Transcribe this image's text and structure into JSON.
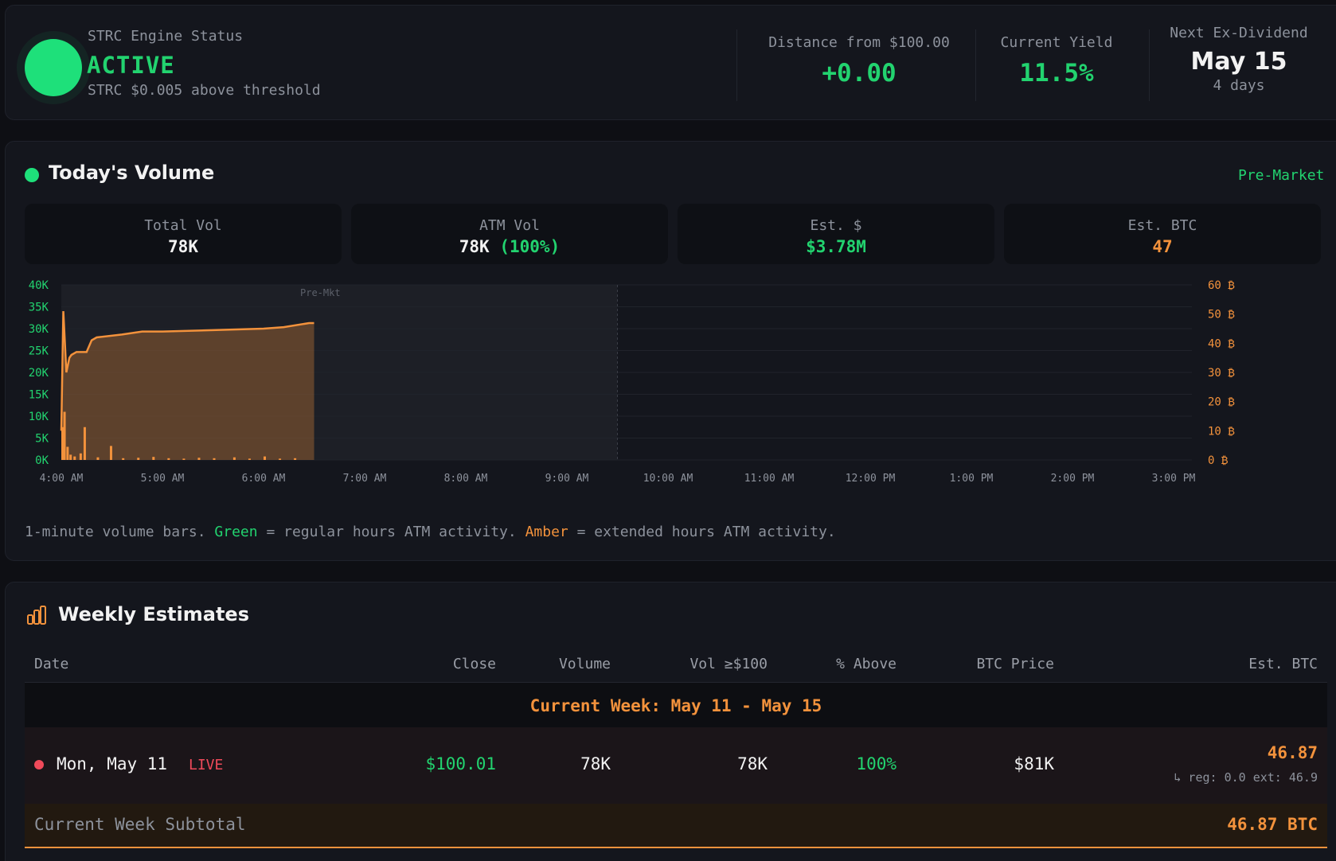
{
  "status": {
    "label": "STRC Engine Status",
    "state": "ACTIVE",
    "detail": "STRC $0.005 above threshold",
    "metrics": [
      {
        "label": "Distance from $100.00",
        "value": "+0.00"
      },
      {
        "label": "Current Yield",
        "value": "11.5%"
      },
      {
        "label": "Next Ex-Dividend",
        "value": "May 15",
        "sub": "4 days"
      }
    ]
  },
  "volume": {
    "title": "Today's Volume",
    "session": "Pre-Market",
    "stats": [
      {
        "label": "Total Vol",
        "value": "78K"
      },
      {
        "label": "ATM Vol",
        "value": "78K",
        "extra": "(100%)"
      },
      {
        "label": "Est. $",
        "value": "$3.78M"
      },
      {
        "label": "Est. BTC",
        "value": "47"
      }
    ],
    "legend": {
      "prefix": "1-minute volume bars. ",
      "green": "Green",
      "mid": " = regular hours ATM activity. ",
      "amber": "Amber",
      "suffix": " = extended hours ATM activity."
    }
  },
  "chart_data": {
    "type": "bar",
    "annotation": "Pre-Mkt",
    "x_ticks": [
      "4:00 AM",
      "5:00 AM",
      "6:00 AM",
      "7:00 AM",
      "8:00 AM",
      "9:00 AM",
      "10:00 AM",
      "11:00 AM",
      "12:00 PM",
      "1:00 PM",
      "2:00 PM",
      "3:00 PM"
    ],
    "y_left_ticks": [
      "0K",
      "5K",
      "10K",
      "15K",
      "20K",
      "25K",
      "30K",
      "35K",
      "40K"
    ],
    "y_left_range": [
      0,
      40000
    ],
    "y_right_ticks": [
      "0 ₿",
      "10 ₿",
      "20 ₿",
      "30 ₿",
      "40 ₿",
      "50 ₿",
      "60 ₿"
    ],
    "y_right_range": [
      0,
      60
    ],
    "premarket_end_hour": 9.5,
    "grid": true,
    "series": [
      {
        "type": "bar",
        "axis": "left",
        "color": "#f3923c",
        "x_hours": [
          4.0,
          4.02,
          4.05,
          4.08,
          4.12,
          4.18,
          4.22,
          4.35,
          4.48,
          4.6,
          4.75,
          4.9,
          5.05,
          5.2,
          5.35,
          5.5,
          5.7,
          5.85,
          6.0,
          6.15,
          6.3
        ],
        "values": [
          7500,
          11000,
          3000,
          1200,
          800,
          1500,
          7500,
          600,
          3200,
          400,
          500,
          700,
          400,
          300,
          500,
          400,
          600,
          300,
          800,
          300,
          400
        ]
      },
      {
        "type": "area",
        "axis": "right",
        "color": "#f3923c",
        "x_hours": [
          4.0,
          4.02,
          4.05,
          4.08,
          4.1,
          4.15,
          4.25,
          4.3,
          4.35,
          4.6,
          4.8,
          5.0,
          5.5,
          6.0,
          6.2,
          6.45,
          6.5
        ],
        "values": [
          10,
          51,
          30,
          35,
          36,
          37,
          37,
          41,
          42,
          43,
          44,
          44,
          44.5,
          45,
          45.5,
          46.9,
          46.9
        ]
      }
    ]
  },
  "weekly": {
    "title": "Weekly Estimates",
    "columns": [
      "Date",
      "Close",
      "Volume",
      "Vol ≥$100",
      "% Above",
      "BTC Price",
      "Est. BTC"
    ],
    "week_label": "Current Week: May 11 - May 15",
    "rows": [
      {
        "date": "Mon, May 11",
        "badge": "LIVE",
        "close": "$100.01",
        "volume": "78K",
        "vol_above": "78K",
        "pct_above": "100%",
        "btc_price": "$81K",
        "est_btc": "46.87",
        "est_detail": "↳ reg: 0.0 ext: 46.9"
      }
    ],
    "subtotal_label": "Current Week Subtotal",
    "subtotal_value": "46.87 BTC"
  }
}
